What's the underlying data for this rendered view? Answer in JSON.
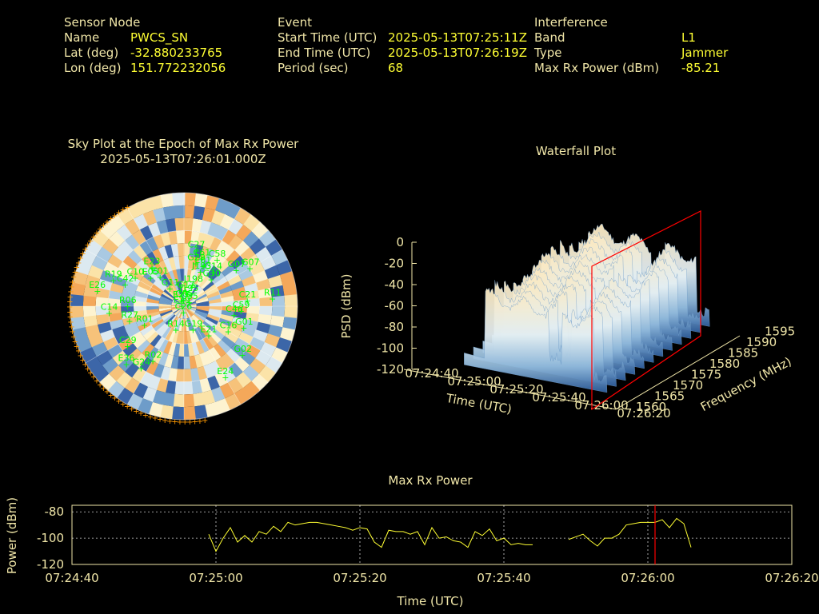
{
  "header": {
    "sensor": {
      "title": "Sensor Node",
      "rows": [
        {
          "label": "Name",
          "value": "PWCS_SN"
        },
        {
          "label": "Lat (deg)",
          "value": "-32.880233765"
        },
        {
          "label": "Lon (deg)",
          "value": "151.772232056"
        }
      ]
    },
    "event": {
      "title": "Event",
      "rows": [
        {
          "label": "Start Time (UTC)",
          "value": "2025-05-13T07:25:11Z"
        },
        {
          "label": "End Time (UTC)",
          "value": "2025-05-13T07:26:19Z"
        },
        {
          "label": "Period (sec)",
          "value": "68"
        }
      ]
    },
    "interference": {
      "title": "Interference",
      "rows": [
        {
          "label": "Band",
          "value": "L1"
        },
        {
          "label": "Type",
          "value": "Jammer"
        },
        {
          "label": "Max Rx Power (dBm)",
          "value": "-85.21"
        }
      ]
    }
  },
  "colors": {
    "label": "#f0e6a8",
    "value": "#ffff33",
    "satellite": "#00ff00",
    "marker": "#ff0000",
    "horizon": "#ff9900",
    "line": "#ffff33"
  },
  "chart_data": [
    {
      "type": "scatter",
      "title": "Sky Plot at the Epoch of Max Rx Power",
      "subtitle": "2025-05-13T07:26:01.000Z",
      "satellites": [
        {
          "name": "G05",
          "az": 355,
          "el": 85
        },
        {
          "name": "G12",
          "az": 5,
          "el": 78
        },
        {
          "name": "J195",
          "az": 15,
          "el": 80
        },
        {
          "name": "J198",
          "az": 20,
          "el": 72
        },
        {
          "name": "J193",
          "az": 25,
          "el": 60
        },
        {
          "name": "G14",
          "az": 40,
          "el": 55
        },
        {
          "name": "G07",
          "az": 55,
          "el": 40
        },
        {
          "name": "G07",
          "az": 60,
          "el": 30
        },
        {
          "name": "C58",
          "az": 35,
          "el": 45
        },
        {
          "name": "G30",
          "az": 45,
          "el": 60
        },
        {
          "name": "G29",
          "az": 15,
          "el": 55
        },
        {
          "name": "C27",
          "az": 12,
          "el": 45
        },
        {
          "name": "C61",
          "az": 20,
          "el": 50
        },
        {
          "name": "E01",
          "az": 25,
          "el": 55
        },
        {
          "name": "E01",
          "az": 320,
          "el": 60
        },
        {
          "name": "E05",
          "az": 310,
          "el": 55
        },
        {
          "name": "E23",
          "az": 320,
          "el": 50
        },
        {
          "name": "C10",
          "az": 300,
          "el": 45
        },
        {
          "name": "C42",
          "az": 290,
          "el": 40
        },
        {
          "name": "R19",
          "az": 290,
          "el": 30
        },
        {
          "name": "E26",
          "az": 280,
          "el": 20
        },
        {
          "name": "G11",
          "az": 320,
          "el": 72
        },
        {
          "name": "E27",
          "az": 330,
          "el": 85
        },
        {
          "name": "C35",
          "az": 50,
          "el": 85
        },
        {
          "name": "E19",
          "az": 280,
          "el": 88
        },
        {
          "name": "R11",
          "az": 85,
          "el": 20
        },
        {
          "name": "R06",
          "az": 270,
          "el": 45
        },
        {
          "name": "C14",
          "az": 265,
          "el": 30
        },
        {
          "name": "R27",
          "az": 255,
          "el": 45
        },
        {
          "name": "R01",
          "az": 245,
          "el": 55
        },
        {
          "name": "C29",
          "az": 235,
          "el": 35
        },
        {
          "name": "E36",
          "az": 225,
          "el": 25
        },
        {
          "name": "G24",
          "az": 215,
          "el": 30
        },
        {
          "name": "R02",
          "az": 210,
          "el": 40
        },
        {
          "name": "R14",
          "az": 200,
          "el": 70
        },
        {
          "name": "C26",
          "az": 190,
          "el": 85
        },
        {
          "name": "G19",
          "az": 160,
          "el": 70
        },
        {
          "name": "E21",
          "az": 140,
          "el": 60
        },
        {
          "name": "C16",
          "az": 120,
          "el": 50
        },
        {
          "name": "G01",
          "az": 110,
          "el": 40
        },
        {
          "name": "C21",
          "az": 85,
          "el": 40
        },
        {
          "name": "C59",
          "az": 95,
          "el": 45
        },
        {
          "name": "C46",
          "az": 100,
          "el": 50
        },
        {
          "name": "G02",
          "az": 130,
          "el": 30
        },
        {
          "name": "E24",
          "az": 150,
          "el": 25
        }
      ]
    },
    {
      "type": "area",
      "title": "Waterfall Plot",
      "xlabel": "Time (UTC)",
      "ylabel": "Frequency (MHz)",
      "zlabel": "PSD (dBm)",
      "x_ticks": [
        "07:24:40",
        "07:25:00",
        "07:25:20",
        "07:25:40",
        "07:26:00",
        "07:26:20"
      ],
      "y_ticks": [
        "1560",
        "1565",
        "1570",
        "1575",
        "1580",
        "1585",
        "1590",
        "1595"
      ],
      "z_ticks": [
        "0",
        "-20",
        "-40",
        "-60",
        "-80",
        "-100",
        "-120"
      ],
      "zlim": [
        -120,
        0
      ],
      "marker_time": "07:26:01"
    },
    {
      "type": "line",
      "title": "Max Rx Power",
      "xlabel": "Time (UTC)",
      "ylabel": "Power (dBm)",
      "x_ticks": [
        "07:24:40",
        "07:25:00",
        "07:25:20",
        "07:25:40",
        "07:26:00",
        "07:26:20"
      ],
      "y_ticks": [
        "-80",
        "-100",
        "-120"
      ],
      "ylim": [
        -120,
        -75
      ],
      "marker_time_sec": 81,
      "series": [
        {
          "name": "",
          "x": [
            19,
            20,
            21,
            22,
            23,
            24,
            25,
            26,
            27,
            28,
            29,
            30,
            31,
            32,
            33,
            34,
            35,
            36,
            37,
            38,
            39,
            40,
            41,
            42,
            43,
            44,
            45,
            46,
            47,
            48,
            49,
            50,
            51,
            52,
            53,
            54,
            55,
            56,
            57,
            58,
            59,
            60,
            61,
            62,
            63,
            64,
            65,
            66,
            67,
            68,
            69,
            70,
            71,
            72,
            73,
            74,
            75,
            76,
            77,
            78,
            79,
            80,
            81,
            82,
            83,
            84,
            85,
            86
          ],
          "y": [
            -97,
            -110,
            -100,
            -92,
            -103,
            -98,
            -103,
            -95,
            -97,
            -91,
            -95,
            -88,
            -90,
            -89,
            -88,
            -88,
            -89,
            -90,
            -91,
            -92,
            -94,
            -92,
            -93,
            -103,
            -107,
            -94,
            -95,
            -95,
            -97,
            -95,
            -105,
            -92,
            -100,
            -99,
            -102,
            -103,
            -107,
            -95,
            -98,
            -93,
            -102,
            -100,
            -105,
            -104,
            -105,
            -105,
            null,
            null,
            null,
            null,
            -101,
            -99,
            -97,
            -102,
            -106,
            -100,
            -100,
            -97,
            -90,
            -89,
            -88,
            -88,
            -88,
            -86,
            -92,
            -85,
            -89,
            -107
          ]
        }
      ]
    }
  ]
}
